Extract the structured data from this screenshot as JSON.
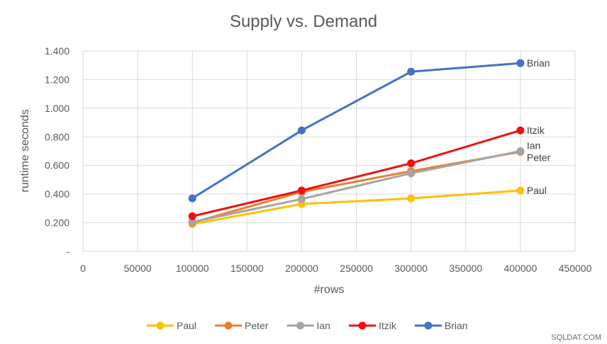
{
  "chart_data": {
    "type": "line",
    "title": "Supply vs. Demand",
    "xlabel": "#rows",
    "ylabel": "runtime seconds",
    "xlim": [
      0,
      450000
    ],
    "ylim": [
      0,
      1.4
    ],
    "x_ticks": [
      "0",
      "50000",
      "100000",
      "150000",
      "200000",
      "250000",
      "300000",
      "350000",
      "400000",
      "450000"
    ],
    "y_ticks": [
      "-",
      "0.200",
      "0.400",
      "0.600",
      "0.800",
      "1.000",
      "1.200",
      "1.400"
    ],
    "grid": true,
    "legend_position": "bottom",
    "x": [
      100000,
      200000,
      300000,
      400000
    ],
    "series": [
      {
        "name": "Paul",
        "color": "#FFC000",
        "values": [
          0.19,
          0.33,
          0.37,
          0.425
        ],
        "end_label": "Paul"
      },
      {
        "name": "Peter",
        "color": "#ED7D31",
        "values": [
          0.2,
          0.415,
          0.56,
          0.695
        ],
        "end_label": "Peter"
      },
      {
        "name": "Ian",
        "color": "#A5A5A5",
        "values": [
          0.205,
          0.365,
          0.545,
          0.7
        ],
        "end_label": "Ian"
      },
      {
        "name": "Itzik",
        "color": "#EE1111",
        "values": [
          0.245,
          0.425,
          0.615,
          0.845
        ],
        "end_label": "Itzik"
      },
      {
        "name": "Brian",
        "color": "#4472C4",
        "values": [
          0.37,
          0.845,
          1.255,
          1.315
        ],
        "end_label": "Brian"
      }
    ]
  },
  "watermark": "SQLDAT.COM"
}
